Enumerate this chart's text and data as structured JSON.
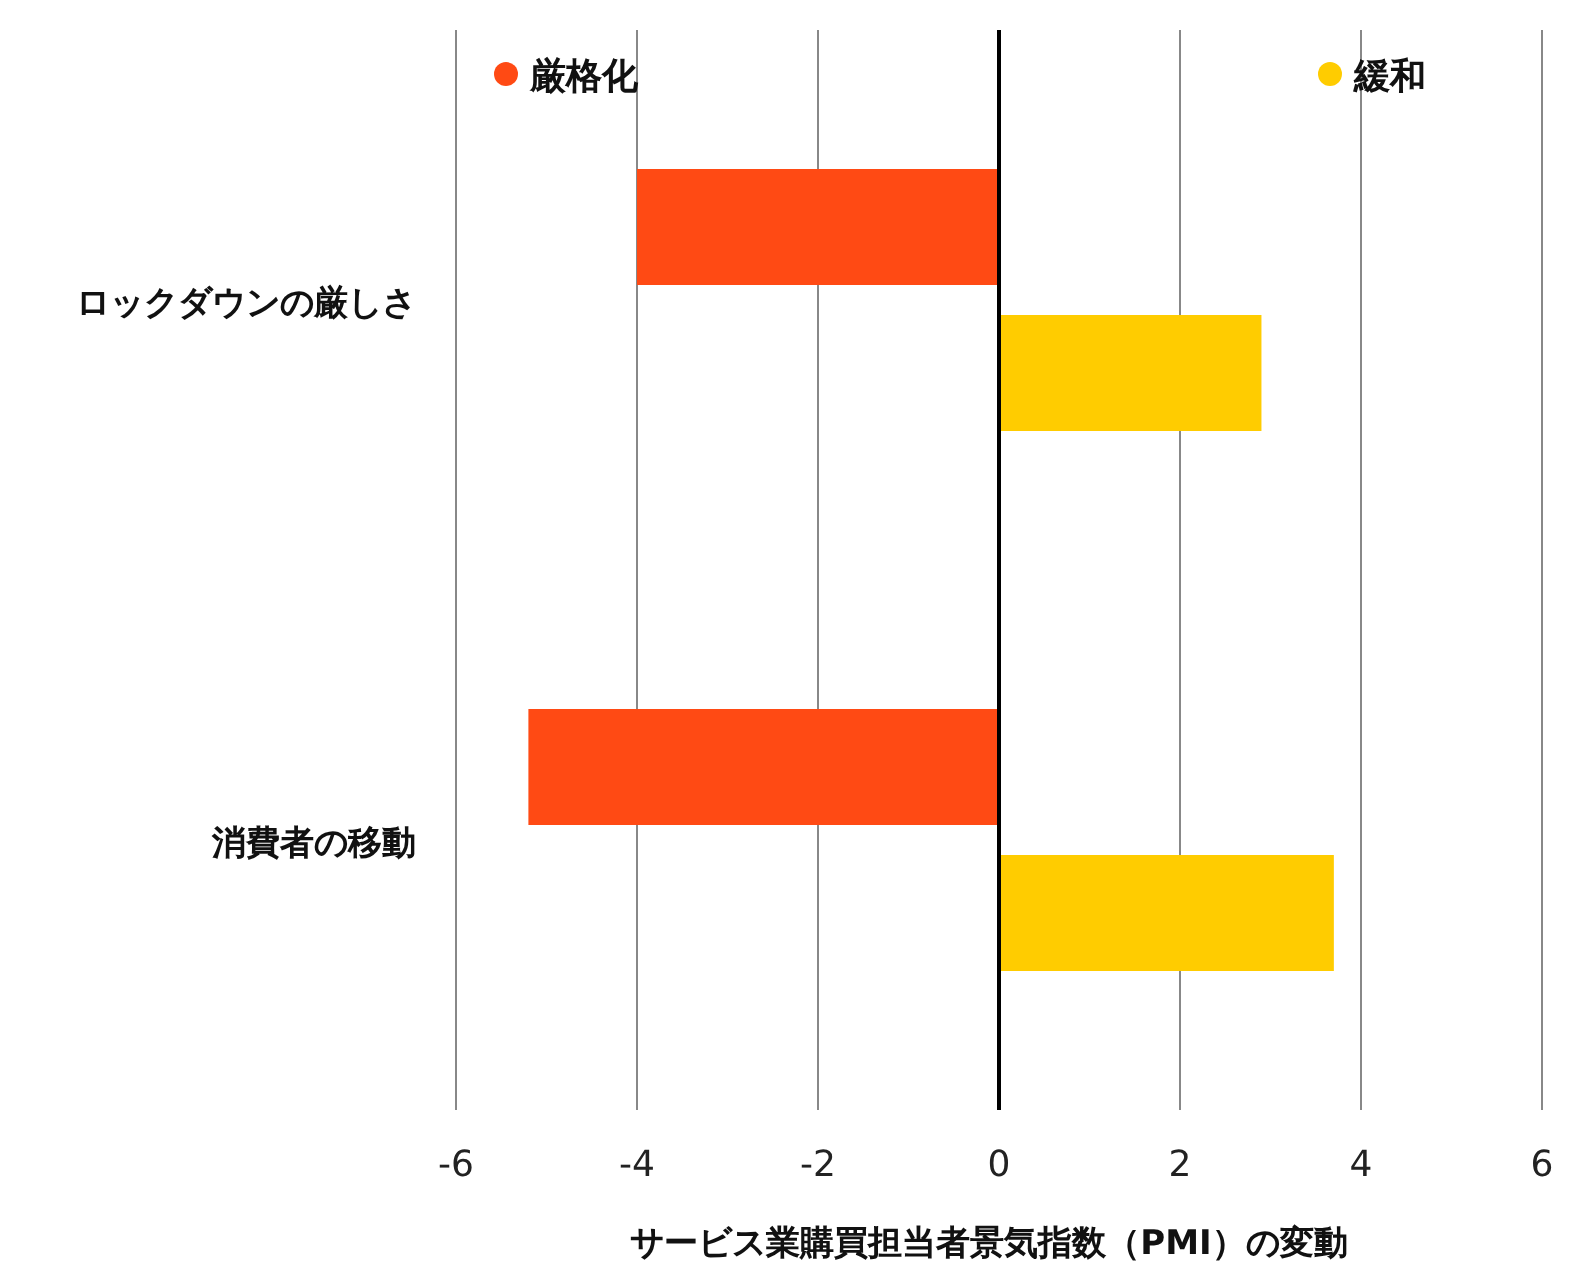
{
  "chart_data": {
    "type": "bar",
    "orientation": "horizontal",
    "xlabel": "サービス業購買担当者景気指数（PMI）の変動",
    "categories": [
      "ロックダウンの厳しさ",
      "消費者の移動"
    ],
    "series": [
      {
        "name": "厳格化",
        "color": "#ff4a14",
        "values": [
          -4.0,
          -5.2
        ]
      },
      {
        "name": "緩和",
        "color": "#ffcc00",
        "values": [
          2.9,
          3.7
        ]
      }
    ],
    "xlim": [
      -6,
      6
    ],
    "xticks": [
      -6,
      -4,
      -2,
      0,
      2,
      4,
      6
    ],
    "grid": "x",
    "legend": "top",
    "ref_lines": [
      {
        "axis": "x",
        "value": 0,
        "color": "#000000"
      }
    ]
  }
}
